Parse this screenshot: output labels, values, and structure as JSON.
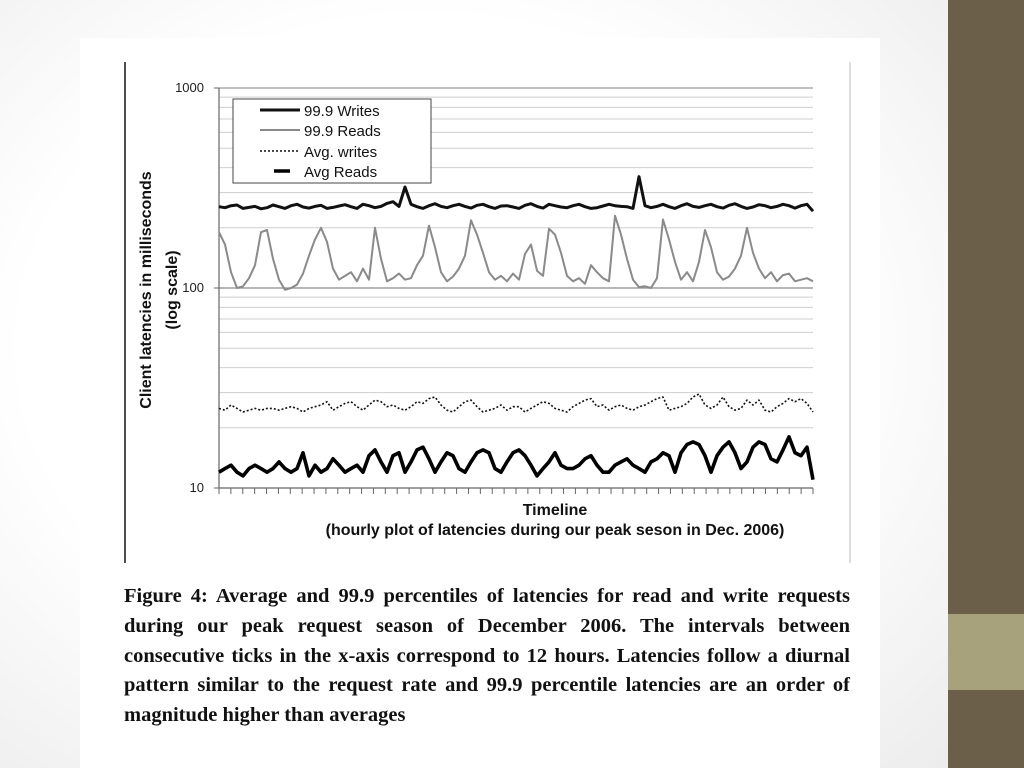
{
  "colors": {
    "sidebar": "#6b5f4a",
    "sidebar_accent": "#a8a27c"
  },
  "chart_data": {
    "type": "line",
    "title": "",
    "ylabel_line1": "Client latencies in milliseconds",
    "ylabel_line2": "(log scale)",
    "xlabel_line1": "Timeline",
    "xlabel_line2": "(hourly plot of latencies during our peak seson in Dec. 2006)",
    "y_scale": "log",
    "ylim": [
      10,
      1000
    ],
    "y_ticks": [
      10,
      100,
      1000
    ],
    "y_tick_labels": [
      "10",
      "100",
      "1000"
    ],
    "x_tick_count": 50,
    "x_tick_interval": "12 hours",
    "grid": "horizontal",
    "legend_position": "top-left",
    "n_points": 100,
    "series": [
      {
        "name": "99.9 Writes",
        "style": "solid-thick",
        "color": "#111111",
        "values": [
          255,
          252,
          258,
          260,
          250,
          253,
          256,
          249,
          252,
          260,
          255,
          250,
          258,
          262,
          254,
          251,
          256,
          259,
          250,
          253,
          257,
          261,
          255,
          250,
          262,
          258,
          252,
          256,
          265,
          270,
          256,
          320,
          262,
          255,
          250,
          258,
          264,
          256,
          252,
          258,
          262,
          256,
          251,
          259,
          262,
          255,
          250,
          257,
          258,
          254,
          250,
          259,
          264,
          256,
          251,
          262,
          258,
          254,
          252,
          258,
          262,
          255,
          250,
          252,
          257,
          262,
          258,
          256,
          255,
          250,
          360,
          258,
          252,
          256,
          262,
          255,
          250,
          258,
          264,
          256,
          253,
          258,
          262,
          255,
          251,
          259,
          264,
          256,
          250,
          254,
          261,
          258,
          252,
          256,
          262,
          258,
          251,
          258,
          262,
          242
        ]
      },
      {
        "name": "99.9 Reads",
        "style": "solid",
        "color": "#8a8a8a",
        "values": [
          190,
          165,
          120,
          100,
          102,
          112,
          130,
          190,
          195,
          140,
          110,
          98,
          100,
          104,
          118,
          145,
          175,
          200,
          170,
          125,
          110,
          115,
          120,
          108,
          125,
          110,
          200,
          140,
          108,
          112,
          118,
          110,
          112,
          130,
          145,
          205,
          160,
          120,
          108,
          114,
          125,
          145,
          218,
          185,
          150,
          120,
          110,
          115,
          108,
          118,
          110,
          148,
          165,
          122,
          115,
          198,
          185,
          150,
          115,
          108,
          112,
          105,
          130,
          120,
          112,
          108,
          230,
          185,
          140,
          110,
          101,
          102,
          100,
          112,
          220,
          175,
          135,
          110,
          120,
          108,
          135,
          195,
          160,
          120,
          110,
          114,
          125,
          145,
          200,
          150,
          125,
          112,
          120,
          108,
          116,
          118,
          108,
          110,
          112,
          108
        ]
      },
      {
        "name": "Avg. writes",
        "style": "dotted",
        "color": "#111111",
        "values": [
          25,
          24.5,
          26,
          25,
          24,
          24.5,
          25,
          24.5,
          25,
          25,
          24.5,
          25,
          25.5,
          25,
          24,
          25,
          25.5,
          26,
          27,
          24.5,
          25.5,
          26.5,
          27,
          25.5,
          24.5,
          26,
          27.5,
          27,
          25.5,
          26,
          25,
          24.5,
          25.5,
          27,
          26.5,
          28,
          28.5,
          26,
          24.5,
          24,
          25.5,
          27,
          27.5,
          25.5,
          24,
          24.5,
          25,
          26,
          24.5,
          25.5,
          25.5,
          24,
          25,
          26,
          27,
          26.5,
          25,
          24.5,
          24,
          25.5,
          26.5,
          27.5,
          28,
          25.5,
          26,
          24.5,
          25.5,
          26,
          25,
          24.5,
          25.5,
          26,
          27,
          28,
          28.5,
          24.5,
          25,
          25.5,
          26.5,
          28.5,
          29.5,
          26,
          25,
          26,
          28.5,
          25.5,
          24.5,
          25,
          27.5,
          26,
          27.5,
          24.5,
          24,
          25.5,
          26.5,
          28,
          27,
          28,
          26.5,
          24
        ]
      },
      {
        "name": "Avg Reads",
        "style": "solid-thick",
        "color": "#000000",
        "values": [
          12,
          12.5,
          13,
          12,
          11.5,
          12.5,
          13,
          12.5,
          12,
          12.5,
          13.5,
          12.5,
          12,
          12.5,
          15,
          11.5,
          13,
          12,
          12.5,
          14,
          13,
          12,
          12.5,
          13,
          12,
          14.5,
          15.5,
          13.5,
          12,
          14.5,
          15,
          12,
          13.5,
          15.5,
          16,
          14,
          12,
          13.5,
          15,
          14.5,
          12.5,
          12,
          13.5,
          15,
          15.5,
          15,
          12.5,
          12,
          13.5,
          15,
          15.5,
          14.5,
          13,
          11.5,
          12.5,
          13.5,
          15,
          13,
          12.5,
          12.5,
          13,
          14,
          14.5,
          13,
          12,
          12,
          13,
          13.5,
          14,
          13,
          12.5,
          12,
          13.5,
          14,
          15,
          14.5,
          12,
          15,
          16.5,
          17,
          16.5,
          14.5,
          12,
          14.5,
          16,
          17,
          15,
          12.5,
          13.5,
          16,
          17,
          16.5,
          14,
          13.5,
          15.5,
          18,
          15,
          14.5,
          16,
          11
        ]
      }
    ]
  },
  "caption": "Figure 4: Average and 99.9 percentiles of latencies for read and write requests during our peak request season of December 2006. The intervals between consecutive ticks in the x-axis correspond to 12 hours. Latencies follow a diurnal pattern similar to the request rate and 99.9 percentile latencies are an order of magnitude higher than averages"
}
